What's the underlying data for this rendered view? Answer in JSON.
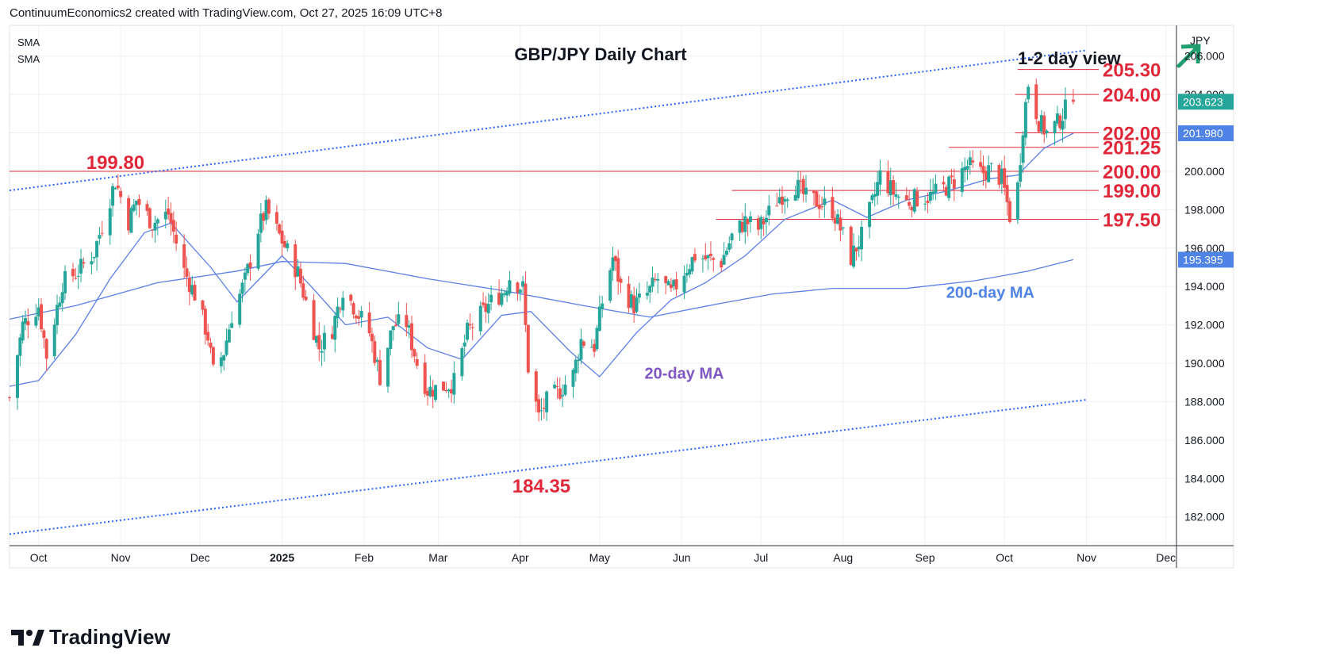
{
  "header": "ContinuumEconomics2 created with TradingView.com, Oct 27, 2025 16:09 UTC+8",
  "brand": "TradingView",
  "indicators": [
    "SMA",
    "SMA"
  ],
  "colors": {
    "up": "#26a69a",
    "down": "#ef5350",
    "ma": "#5b7fe6",
    "annotation": "#e0283a",
    "channel": "#2962ff",
    "ma20_label": "#7e57c2",
    "ma200_label": "#4f83e6"
  },
  "chart_data": {
    "type": "candlestick",
    "title": "GBP/JPY Daily Chart",
    "view_label": "1-2 day view",
    "view_icon": "arrow-up-right-icon",
    "currency": "JPY",
    "ylim": [
      180.5,
      207.6
    ],
    "y_ticks": [
      {
        "value": 182,
        "label": "182.000"
      },
      {
        "value": 184,
        "label": "184.000"
      },
      {
        "value": 186,
        "label": "186.000"
      },
      {
        "value": 188,
        "label": "188.000"
      },
      {
        "value": 190,
        "label": "190.000"
      },
      {
        "value": 192,
        "label": "192.000"
      },
      {
        "value": 194,
        "label": "194.000"
      },
      {
        "value": 196,
        "label": "196.000"
      },
      {
        "value": 198,
        "label": "198.000"
      },
      {
        "value": 200,
        "label": "200.000"
      },
      {
        "value": 202,
        "label": "202.000"
      },
      {
        "value": 204,
        "label": "204.000"
      },
      {
        "value": 206,
        "label": "206.000"
      }
    ],
    "x_ticks": [
      {
        "label": "Oct",
        "date": "2024-10-01"
      },
      {
        "label": "Nov",
        "date": "2024-11-01"
      },
      {
        "label": "Dec",
        "date": "2024-12-01"
      },
      {
        "label": "2025",
        "date": "2025-01-01",
        "bold": true
      },
      {
        "label": "Feb",
        "date": "2025-02-01"
      },
      {
        "label": "Mar",
        "date": "2025-03-01"
      },
      {
        "label": "Apr",
        "date": "2025-04-01"
      },
      {
        "label": "May",
        "date": "2025-05-01"
      },
      {
        "label": "Jun",
        "date": "2025-06-01"
      },
      {
        "label": "Jul",
        "date": "2025-07-01"
      },
      {
        "label": "Aug",
        "date": "2025-08-01"
      },
      {
        "label": "Sep",
        "date": "2025-09-01"
      },
      {
        "label": "Oct",
        "date": "2025-10-01"
      },
      {
        "label": "Nov",
        "date": "2025-11-01"
      },
      {
        "label": "Dec",
        "date": "2025-12-01"
      }
    ],
    "price_badges": [
      {
        "value": 203.623,
        "label": "203.623",
        "color": "#26a69a"
      },
      {
        "value": 201.98,
        "label": "201.980",
        "color": "#4f83e6"
      },
      {
        "value": 195.395,
        "label": "195.395",
        "color": "#4f83e6"
      }
    ],
    "close_anchors": [
      [
        "2024-09-20",
        188.2
      ],
      [
        "2024-09-25",
        192.0
      ],
      [
        "2024-10-01",
        193.0
      ],
      [
        "2024-10-04",
        190.4
      ],
      [
        "2024-10-10",
        194.2
      ],
      [
        "2024-10-16",
        194.8
      ],
      [
        "2024-10-22",
        195.8
      ],
      [
        "2024-10-28",
        198.6
      ],
      [
        "2024-10-30",
        199.5
      ],
      [
        "2024-11-04",
        197.4
      ],
      [
        "2024-11-07",
        198.5
      ],
      [
        "2024-11-13",
        197.3
      ],
      [
        "2024-11-19",
        197.8
      ],
      [
        "2024-11-25",
        194.8
      ],
      [
        "2024-11-29",
        193.6
      ],
      [
        "2024-12-04",
        191.4
      ],
      [
        "2024-12-06",
        189.5
      ],
      [
        "2024-12-10",
        190.6
      ],
      [
        "2024-12-13",
        192.5
      ],
      [
        "2024-12-18",
        194.3
      ],
      [
        "2024-12-23",
        197.0
      ],
      [
        "2024-12-26",
        198.0
      ],
      [
        "2025-01-02",
        196.1
      ],
      [
        "2025-01-07",
        194.7
      ],
      [
        "2025-01-10",
        193.2
      ],
      [
        "2025-01-15",
        190.8
      ],
      [
        "2025-01-20",
        191.8
      ],
      [
        "2025-01-24",
        193.9
      ],
      [
        "2025-01-28",
        193.0
      ],
      [
        "2025-02-03",
        191.6
      ],
      [
        "2025-02-07",
        189.3
      ],
      [
        "2025-02-12",
        192.0
      ],
      [
        "2025-02-17",
        192.1
      ],
      [
        "2025-02-21",
        190.0
      ],
      [
        "2025-02-25",
        188.6
      ],
      [
        "2025-03-03",
        188.8
      ],
      [
        "2025-03-07",
        189.0
      ],
      [
        "2025-03-12",
        191.6
      ],
      [
        "2025-03-17",
        192.5
      ],
      [
        "2025-03-21",
        193.2
      ],
      [
        "2025-03-26",
        193.8
      ],
      [
        "2025-03-28",
        194.5
      ],
      [
        "2025-04-02",
        193.9
      ],
      [
        "2025-04-04",
        189.8
      ],
      [
        "2025-04-08",
        187.2
      ],
      [
        "2025-04-11",
        188.0
      ],
      [
        "2025-04-16",
        188.6
      ],
      [
        "2025-04-21",
        189.4
      ],
      [
        "2025-04-24",
        191.2
      ],
      [
        "2025-04-29",
        190.9
      ],
      [
        "2025-05-02",
        193.2
      ],
      [
        "2025-05-06",
        195.5
      ],
      [
        "2025-05-09",
        194.0
      ],
      [
        "2025-05-14",
        193.0
      ],
      [
        "2025-05-19",
        193.6
      ],
      [
        "2025-05-23",
        194.4
      ],
      [
        "2025-05-28",
        193.6
      ],
      [
        "2025-06-02",
        194.8
      ],
      [
        "2025-06-06",
        195.6
      ],
      [
        "2025-06-11",
        195.4
      ],
      [
        "2025-06-16",
        195.3
      ],
      [
        "2025-06-20",
        196.6
      ],
      [
        "2025-06-25",
        197.4
      ],
      [
        "2025-06-30",
        197.0
      ],
      [
        "2025-07-03",
        197.6
      ],
      [
        "2025-07-08",
        198.7
      ],
      [
        "2025-07-14",
        199.3
      ],
      [
        "2025-07-18",
        198.6
      ],
      [
        "2025-07-23",
        198.4
      ],
      [
        "2025-07-28",
        198.0
      ],
      [
        "2025-07-31",
        197.0
      ],
      [
        "2025-08-04",
        195.5
      ],
      [
        "2025-08-08",
        196.6
      ],
      [
        "2025-08-12",
        198.3
      ],
      [
        "2025-08-15",
        199.8
      ],
      [
        "2025-08-20",
        198.9
      ],
      [
        "2025-08-25",
        198.4
      ],
      [
        "2025-08-29",
        198.6
      ],
      [
        "2025-09-03",
        198.7
      ],
      [
        "2025-09-08",
        199.1
      ],
      [
        "2025-09-12",
        199.5
      ],
      [
        "2025-09-17",
        200.3
      ],
      [
        "2025-09-22",
        199.9
      ],
      [
        "2025-09-26",
        200.1
      ],
      [
        "2025-09-30",
        199.6
      ],
      [
        "2025-10-03",
        197.7
      ],
      [
        "2025-10-06",
        199.2
      ],
      [
        "2025-10-08",
        202.4
      ],
      [
        "2025-10-10",
        204.6
      ],
      [
        "2025-10-14",
        202.6
      ],
      [
        "2025-10-17",
        202.0
      ],
      [
        "2025-10-21",
        202.5
      ],
      [
        "2025-10-24",
        203.2
      ],
      [
        "2025-10-27",
        203.62
      ]
    ],
    "ma20": [
      [
        "2024-09-20",
        188.8
      ],
      [
        "2024-10-01",
        189.1
      ],
      [
        "2024-10-15",
        191.5
      ],
      [
        "2024-10-28",
        194.4
      ],
      [
        "2024-11-10",
        196.8
      ],
      [
        "2024-11-20",
        197.3
      ],
      [
        "2024-12-05",
        195.0
      ],
      [
        "2024-12-15",
        193.2
      ],
      [
        "2025-01-01",
        195.6
      ],
      [
        "2025-01-12",
        194.0
      ],
      [
        "2025-01-25",
        192.0
      ],
      [
        "2025-02-10",
        192.4
      ],
      [
        "2025-02-25",
        190.8
      ],
      [
        "2025-03-10",
        190.2
      ],
      [
        "2025-03-25",
        192.5
      ],
      [
        "2025-04-05",
        192.7
      ],
      [
        "2025-04-20",
        190.6
      ],
      [
        "2025-05-01",
        189.3
      ],
      [
        "2025-05-15",
        191.6
      ],
      [
        "2025-05-28",
        193.3
      ],
      [
        "2025-06-10",
        194.2
      ],
      [
        "2025-06-25",
        195.6
      ],
      [
        "2025-07-10",
        197.5
      ],
      [
        "2025-07-28",
        198.5
      ],
      [
        "2025-08-10",
        197.6
      ],
      [
        "2025-08-25",
        198.5
      ],
      [
        "2025-09-10",
        199.0
      ],
      [
        "2025-09-25",
        199.6
      ],
      [
        "2025-10-06",
        199.8
      ],
      [
        "2025-10-16",
        201.2
      ],
      [
        "2025-10-27",
        201.98
      ]
    ],
    "ma200": [
      [
        "2024-09-20",
        192.3
      ],
      [
        "2024-10-15",
        193.0
      ],
      [
        "2024-11-15",
        194.2
      ],
      [
        "2024-12-15",
        194.8
      ],
      [
        "2025-01-01",
        195.3
      ],
      [
        "2025-01-25",
        195.2
      ],
      [
        "2025-02-25",
        194.4
      ],
      [
        "2025-03-25",
        193.8
      ],
      [
        "2025-04-25",
        193.0
      ],
      [
        "2025-05-20",
        192.4
      ],
      [
        "2025-06-15",
        193.1
      ],
      [
        "2025-07-05",
        193.6
      ],
      [
        "2025-07-28",
        193.9
      ],
      [
        "2025-08-25",
        193.9
      ],
      [
        "2025-09-20",
        194.3
      ],
      [
        "2025-10-10",
        194.8
      ],
      [
        "2025-10-27",
        195.395
      ]
    ],
    "channel_upper": {
      "start": [
        "2024-09-20",
        199.0
      ],
      "end": [
        "2025-11-01",
        206.3
      ]
    },
    "channel_lower": {
      "start": [
        "2024-09-20",
        181.1
      ],
      "end": [
        "2025-11-01",
        188.1
      ]
    },
    "levels": [
      {
        "value": 205.3,
        "label": "205.30",
        "from": "2025-10-06"
      },
      {
        "value": 204.0,
        "label": "204.00",
        "from": "2025-10-05"
      },
      {
        "value": 202.0,
        "label": "202.00",
        "from": "2025-10-05"
      },
      {
        "value": 201.25,
        "label": "201.25",
        "from": "2025-09-10"
      },
      {
        "value": 200.0,
        "label": "200.00",
        "from": "2024-09-20"
      },
      {
        "value": 199.0,
        "label": "199.00",
        "from": "2025-06-20"
      },
      {
        "value": 197.5,
        "label": "197.50",
        "from": "2025-06-14"
      }
    ],
    "annotations": [
      {
        "text": "199.80",
        "date": "2024-10-30",
        "value": 199.8
      },
      {
        "text": "184.35",
        "date": "2025-04-09",
        "value": 184.35
      }
    ],
    "ma_labels": [
      {
        "text": "20-day MA",
        "date": "2025-05-18",
        "value": 189.2
      },
      {
        "text": "200-day MA",
        "date": "2025-09-09",
        "value": 193.4
      }
    ]
  }
}
